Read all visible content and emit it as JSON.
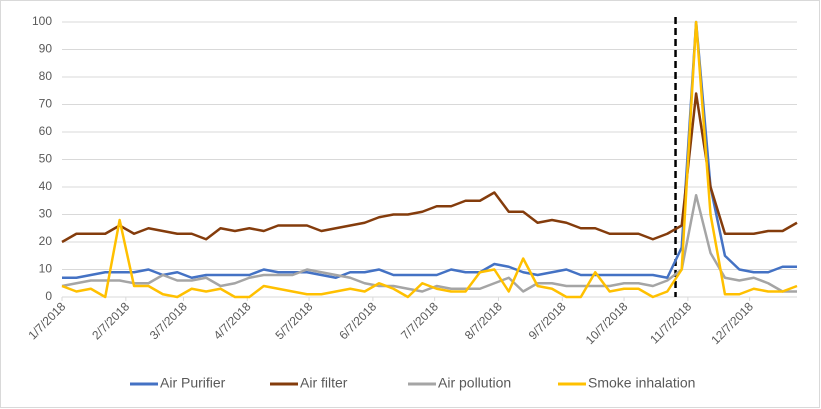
{
  "chart_data": {
    "type": "line",
    "x": [
      "1/7/2018",
      "1/14/2018",
      "1/21/2018",
      "1/28/2018",
      "2/4/2018",
      "2/11/2018",
      "2/18/2018",
      "2/25/2018",
      "3/4/2018",
      "3/11/2018",
      "3/18/2018",
      "3/25/2018",
      "4/1/2018",
      "4/8/2018",
      "4/15/2018",
      "4/22/2018",
      "4/29/2018",
      "5/6/2018",
      "5/13/2018",
      "5/20/2018",
      "5/27/2018",
      "6/3/2018",
      "6/10/2018",
      "6/17/2018",
      "6/24/2018",
      "7/1/2018",
      "7/8/2018",
      "7/15/2018",
      "7/22/2018",
      "7/29/2018",
      "8/5/2018",
      "8/12/2018",
      "8/19/2018",
      "8/26/2018",
      "9/2/2018",
      "9/9/2018",
      "9/16/2018",
      "9/23/2018",
      "9/30/2018",
      "10/7/2018",
      "10/14/2018",
      "10/21/2018",
      "10/28/2018",
      "11/4/2018",
      "11/11/2018",
      "11/18/2018",
      "11/25/2018",
      "12/2/2018",
      "12/9/2018",
      "12/16/2018",
      "12/23/2018",
      "12/30/2018"
    ],
    "series": [
      {
        "name": "Air Purifier",
        "color": "#4472c4",
        "values": [
          7,
          7,
          8,
          9,
          9,
          9,
          10,
          8,
          9,
          7,
          8,
          8,
          8,
          8,
          10,
          9,
          9,
          9,
          8,
          7,
          9,
          9,
          10,
          8,
          8,
          8,
          8,
          10,
          9,
          9,
          12,
          11,
          9,
          8,
          9,
          10,
          8,
          8,
          8,
          8,
          8,
          8,
          7,
          18,
          100,
          40,
          15,
          10,
          9,
          9,
          11,
          11
        ]
      },
      {
        "name": "Air filter",
        "color": "#843c0c",
        "values": [
          20,
          23,
          23,
          23,
          26,
          23,
          25,
          24,
          23,
          23,
          21,
          25,
          24,
          25,
          24,
          26,
          26,
          26,
          24,
          25,
          26,
          27,
          29,
          30,
          30,
          31,
          33,
          33,
          35,
          35,
          38,
          31,
          31,
          27,
          28,
          27,
          25,
          25,
          23,
          23,
          23,
          21,
          23,
          26,
          74,
          40,
          23,
          23,
          23,
          24,
          24,
          27
        ]
      },
      {
        "name": "Air pollution",
        "color": "#a5a5a5",
        "values": [
          4,
          5,
          6,
          6,
          6,
          5,
          5,
          8,
          6,
          6,
          7,
          4,
          5,
          7,
          8,
          8,
          8,
          10,
          9,
          8,
          7,
          5,
          4,
          4,
          3,
          2,
          4,
          3,
          3,
          3,
          5,
          7,
          2,
          5,
          5,
          4,
          4,
          4,
          4,
          5,
          5,
          4,
          6,
          10,
          37,
          16,
          7,
          6,
          7,
          5,
          2,
          2
        ]
      },
      {
        "name": "Smoke inhalation",
        "color": "#ffc000",
        "values": [
          4,
          2,
          3,
          0,
          28,
          4,
          4,
          1,
          0,
          3,
          2,
          3,
          0,
          0,
          4,
          3,
          2,
          1,
          1,
          2,
          3,
          2,
          5,
          3,
          0,
          5,
          3,
          2,
          2,
          9,
          10,
          2,
          14,
          4,
          3,
          0,
          0,
          9,
          2,
          3,
          3,
          0,
          2,
          10,
          100,
          30,
          1,
          1,
          3,
          2,
          2,
          4
        ]
      }
    ],
    "xlim": [
      "1/7/2018",
      "12/30/2018"
    ],
    "xticks": [
      "1/7/2018",
      "2/7/2018",
      "3/7/2018",
      "4/7/2018",
      "5/7/2018",
      "6/7/2018",
      "7/7/2018",
      "8/7/2018",
      "9/7/2018",
      "10/7/2018",
      "11/7/2018",
      "12/7/2018"
    ],
    "ylim": [
      0,
      100
    ],
    "yticks": [
      0,
      10,
      20,
      30,
      40,
      50,
      60,
      70,
      80,
      90,
      100
    ],
    "grid": true,
    "vline_x": "11/1/2018",
    "legend": "bottom"
  }
}
